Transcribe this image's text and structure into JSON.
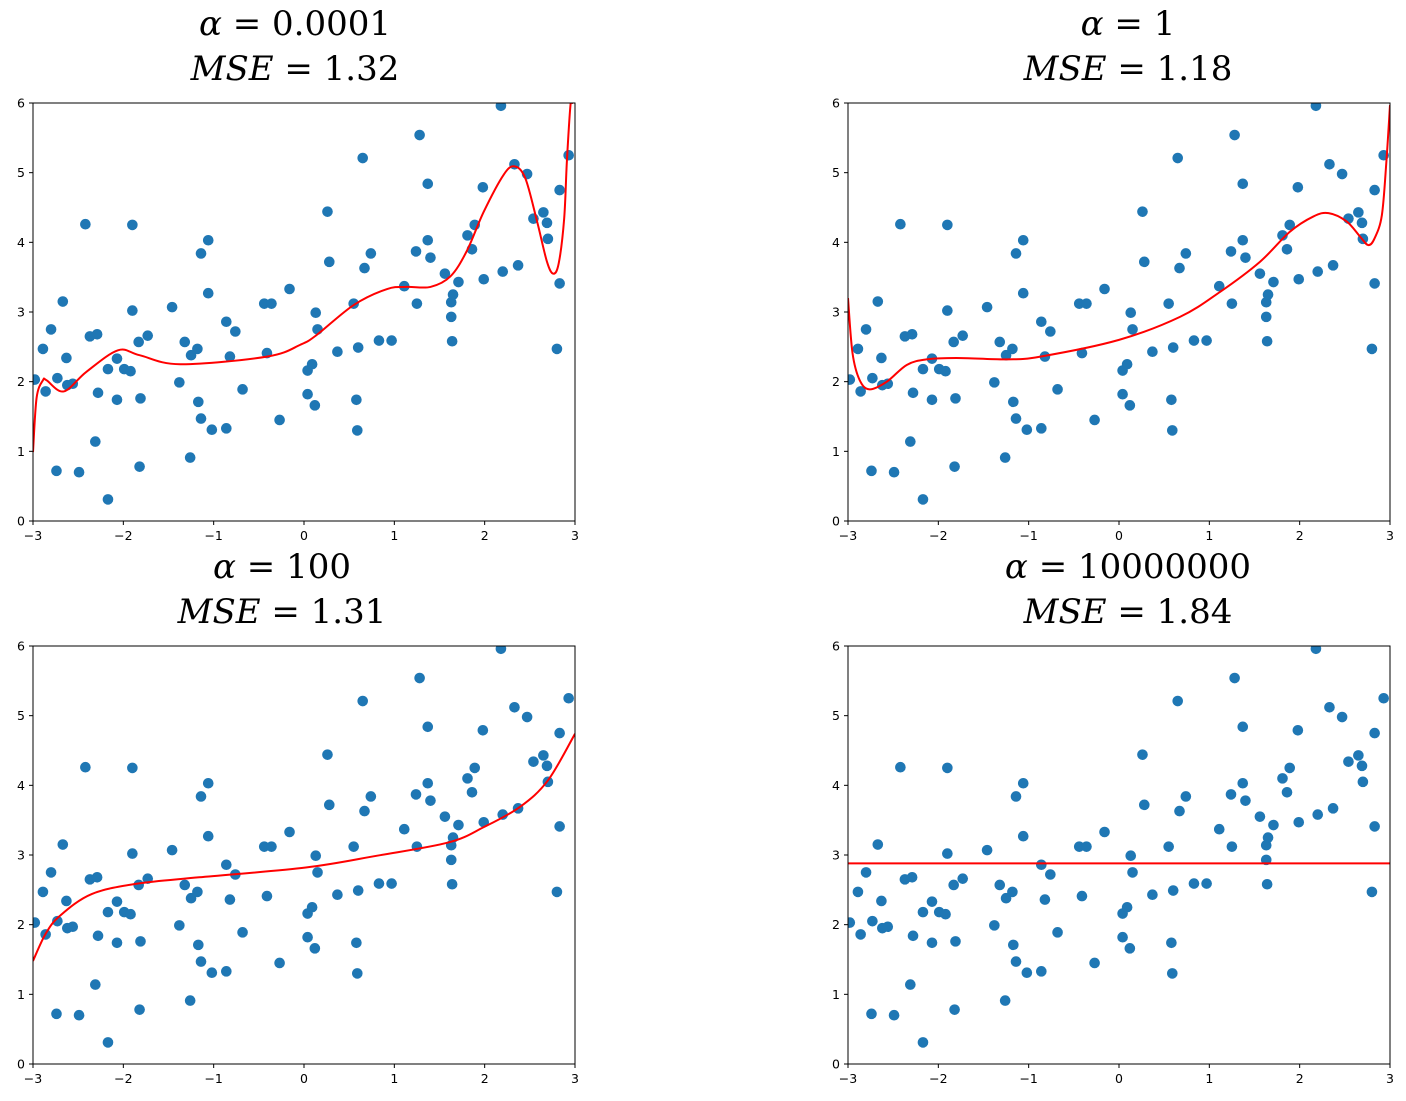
{
  "chart_data": [
    {
      "type": "scatter",
      "title_lines": [
        "α = 0.0001",
        "MSE = 1.32"
      ],
      "xlim": [
        -3,
        3
      ],
      "ylim": [
        0,
        6
      ],
      "xticks": [
        -3,
        -2,
        -1,
        0,
        1,
        2,
        3
      ],
      "yticks": [
        0,
        1,
        2,
        3,
        4,
        5,
        6
      ],
      "grid": false,
      "fit_curve": {
        "x": [
          -3.0,
          -2.96,
          -2.89,
          -2.85,
          -2.66,
          -2.41,
          -2.06,
          -1.82,
          -1.37,
          -0.41,
          -0.04,
          0.14,
          0.55,
          0.92,
          1.14,
          1.4,
          1.62,
          1.8,
          1.99,
          2.21,
          2.33,
          2.45,
          2.58,
          2.69,
          2.76,
          2.82,
          2.88,
          2.91,
          2.95,
          2.97
        ],
        "y": [
          0.99,
          1.77,
          2.02,
          2.02,
          1.86,
          2.14,
          2.45,
          2.38,
          2.25,
          2.36,
          2.53,
          2.67,
          3.1,
          3.33,
          3.36,
          3.36,
          3.51,
          3.87,
          4.44,
          4.97,
          5.09,
          4.92,
          4.3,
          3.72,
          3.55,
          3.7,
          4.34,
          5.16,
          5.97,
          6.0
        ]
      }
    },
    {
      "type": "scatter",
      "title_lines": [
        "α = 1",
        "MSE = 1.18"
      ],
      "xlim": [
        -3,
        3
      ],
      "ylim": [
        0,
        6
      ],
      "xticks": [
        -3,
        -2,
        -1,
        0,
        1,
        2,
        3
      ],
      "yticks": [
        0,
        1,
        2,
        3,
        4,
        5,
        6
      ],
      "grid": false,
      "fit_curve": {
        "x": [
          -3.0,
          -2.95,
          -2.87,
          -2.76,
          -2.57,
          -2.35,
          -2.13,
          -1.8,
          -1.24,
          -0.87,
          0.0,
          0.675,
          1.12,
          1.56,
          1.89,
          2.15,
          2.32,
          2.52,
          2.67,
          2.76,
          2.83,
          2.91,
          2.96,
          3.0
        ],
        "y": [
          3.2,
          2.41,
          2.02,
          1.89,
          2.0,
          2.24,
          2.32,
          2.34,
          2.32,
          2.36,
          2.6,
          2.93,
          3.29,
          3.72,
          4.15,
          4.37,
          4.42,
          4.3,
          4.08,
          3.96,
          4.06,
          4.39,
          5.16,
          5.97
        ]
      }
    },
    {
      "type": "scatter",
      "title_lines": [
        "α = 100",
        "MSE = 1.31"
      ],
      "xlim": [
        -3,
        3
      ],
      "ylim": [
        0,
        6
      ],
      "xticks": [
        -3,
        -2,
        -1,
        0,
        1,
        2,
        3
      ],
      "yticks": [
        0,
        1,
        2,
        3,
        4,
        5,
        6
      ],
      "grid": false,
      "fit_curve": {
        "x": [
          -3.0,
          -2.86,
          -2.7,
          -2.35,
          -1.84,
          -1.16,
          0.02,
          0.81,
          1.6,
          1.99,
          2.39,
          2.7,
          3.0
        ],
        "y": [
          1.48,
          1.87,
          2.13,
          2.44,
          2.59,
          2.68,
          2.82,
          2.99,
          3.18,
          3.4,
          3.69,
          4.07,
          4.74
        ]
      }
    },
    {
      "type": "scatter",
      "title_lines": [
        "α = 10000000",
        "MSE = 1.84"
      ],
      "xlim": [
        -3,
        3
      ],
      "ylim": [
        0,
        6
      ],
      "xticks": [
        -3,
        -2,
        -1,
        0,
        1,
        2,
        3
      ],
      "yticks": [
        0,
        1,
        2,
        3,
        4,
        5,
        6
      ],
      "grid": false,
      "fit_curve": {
        "x": [
          -3.0,
          3.0
        ],
        "y": [
          2.88,
          2.88
        ]
      }
    }
  ],
  "scatter_points": {
    "x": [
      -2.98,
      -2.89,
      -2.86,
      -2.8,
      -2.74,
      -2.73,
      -2.67,
      -2.63,
      -2.62,
      -2.56,
      -2.49,
      -2.42,
      -2.37,
      -2.29,
      -2.31,
      -2.28,
      -2.17,
      -2.17,
      -2.07,
      -2.07,
      -1.99,
      -1.92,
      -1.9,
      -1.9,
      -1.83,
      -1.81,
      -1.82,
      -1.73,
      -1.46,
      -1.38,
      -1.32,
      -1.26,
      -1.25,
      -1.18,
      -1.17,
      -1.14,
      -1.14,
      -1.06,
      -1.06,
      -1.02,
      -0.86,
      -0.86,
      -0.82,
      -0.76,
      -0.68,
      -0.44,
      -0.36,
      -0.41,
      -0.27,
      -0.16,
      0.04,
      0.04,
      0.09,
      0.12,
      0.13,
      0.15,
      0.26,
      0.28,
      0.37,
      0.55,
      0.58,
      0.59,
      0.6,
      0.65,
      0.67,
      0.74,
      0.83,
      0.97,
      1.11,
      1.24,
      1.25,
      1.28,
      1.37,
      1.37,
      1.4,
      1.56,
      1.63,
      1.63,
      1.65,
      1.64,
      1.71,
      1.81,
      1.86,
      1.89,
      1.98,
      1.99,
      2.18,
      2.2,
      2.33,
      2.37,
      2.47,
      2.54,
      2.65,
      2.69,
      2.7,
      2.83,
      2.83,
      2.8,
      2.93
    ],
    "y": [
      2.03,
      2.47,
      1.86,
      2.75,
      0.72,
      2.05,
      3.15,
      2.34,
      1.95,
      1.97,
      0.7,
      4.26,
      2.65,
      2.68,
      1.14,
      1.84,
      2.18,
      0.31,
      2.33,
      1.74,
      2.18,
      2.15,
      4.25,
      3.02,
      2.57,
      1.76,
      0.78,
      2.66,
      3.07,
      1.99,
      2.57,
      0.91,
      2.38,
      2.47,
      1.71,
      3.84,
      1.47,
      4.03,
      3.27,
      1.31,
      2.86,
      1.33,
      2.36,
      2.72,
      1.89,
      3.12,
      3.12,
      2.41,
      1.45,
      3.33,
      2.16,
      1.82,
      2.25,
      1.66,
      2.99,
      2.75,
      4.44,
      3.72,
      2.43,
      3.12,
      1.74,
      1.3,
      2.49,
      5.21,
      3.63,
      3.84,
      2.59,
      2.59,
      3.37,
      3.87,
      3.12,
      5.54,
      4.84,
      4.03,
      3.78,
      3.55,
      3.14,
      2.93,
      3.25,
      2.58,
      3.43,
      4.1,
      3.9,
      4.25,
      4.79,
      3.47,
      5.96,
      3.58,
      5.12,
      3.67,
      4.98,
      4.34,
      4.43,
      4.28,
      4.05,
      4.75,
      3.41,
      2.47,
      5.25
    ]
  },
  "colors": {
    "points": "#1f77b4",
    "fit_line": "#ff0000",
    "axes": "#000000"
  }
}
